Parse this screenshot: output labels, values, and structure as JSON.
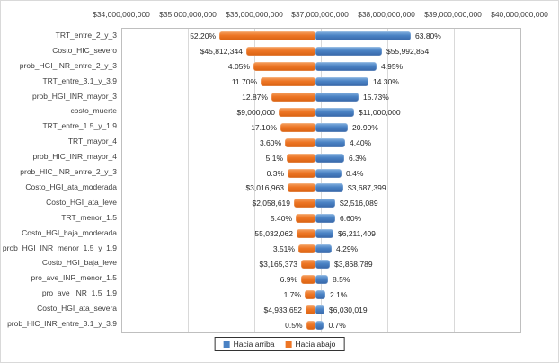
{
  "chart_data": {
    "type": "bar",
    "subtype": "tornado",
    "orientation": "horizontal",
    "title": "",
    "x_axis": {
      "position": "top",
      "tick_labels": [
        "$34,000,000,000",
        "$35,000,000,000",
        "$36,000,000,000",
        "$37,000,000,000",
        "$38,000,000,000",
        "$39,000,000,000",
        "$40,000,000,000"
      ],
      "range_billions": [
        34,
        40
      ],
      "gridlines_at_billions": [
        35,
        36,
        37,
        38,
        39
      ],
      "grid": true
    },
    "base_value_billions": 36.906,
    "rows": [
      {
        "label": "TRT_entre_2_y_3",
        "down_label": "52.20%",
        "up_label": "63.80%",
        "down_value_b": 35.463,
        "up_value_b": 38.348
      },
      {
        "label": "Costo_HIC_severo",
        "down_label": "$45,812,344",
        "up_label": "$55,992,854",
        "down_value_b": 35.869,
        "up_value_b": 37.914
      },
      {
        "label": "prob_HGI_INR_entre_2_y_3",
        "down_label": "4.05%",
        "up_label": "4.95%",
        "down_value_b": 35.977,
        "up_value_b": 37.833
      },
      {
        "label": "TRT_entre_3.1_y_3.9",
        "down_label": "11.70%",
        "up_label": "14.30%",
        "down_value_b": 36.086,
        "up_value_b": 37.711
      },
      {
        "label": "prob_HGI_INR_mayor_3",
        "down_label": "12.87%",
        "up_label": "15.73%",
        "down_value_b": 36.248,
        "up_value_b": 37.562
      },
      {
        "label": "costo_muerte",
        "down_label": "$9,000,000",
        "up_label": "$11,000,000",
        "down_value_b": 36.357,
        "up_value_b": 37.494
      },
      {
        "label": "TRT_entre_1.5_y_1.9",
        "down_label": "17.10%",
        "up_label": "20.90%",
        "down_value_b": 36.384,
        "up_value_b": 37.4
      },
      {
        "label": "TRT_mayor_4",
        "down_label": "3.60%",
        "up_label": "4.40%",
        "down_value_b": 36.452,
        "up_value_b": 37.359
      },
      {
        "label": "prob_HIC_INR_mayor_4",
        "down_label": "5.1%",
        "up_label": "6.3%",
        "down_value_b": 36.479,
        "up_value_b": 37.346
      },
      {
        "label": "prob_HIC_INR_entre_2_y_3",
        "down_label": "0.3%",
        "up_label": "0.4%",
        "down_value_b": 36.492,
        "up_value_b": 37.305
      },
      {
        "label": "Costo_HGI_ata_moderada",
        "down_label": "$3,016,963",
        "up_label": "$3,687,399",
        "down_value_b": 36.492,
        "up_value_b": 37.332
      },
      {
        "label": "Costo_HGI_ata_leve",
        "down_label": "$2,058,619",
        "up_label": "$2,516,089",
        "down_value_b": 36.587,
        "up_value_b": 37.21
      },
      {
        "label": "TRT_menor_1.5",
        "down_label": "5.40%",
        "up_label": "6.60%",
        "down_value_b": 36.614,
        "up_value_b": 37.21
      },
      {
        "label": "Costo_HGI_baja_moderada",
        "down_label": "55,032,062",
        "up_label": "$6,211,409",
        "down_value_b": 36.627,
        "up_value_b": 37.183
      },
      {
        "label": "prob_HGI_INR_menor_1.5_y_1.9",
        "down_label": "3.51%",
        "up_label": "4.29%",
        "down_value_b": 36.654,
        "up_value_b": 37.156
      },
      {
        "label": "Costo_HGI_baja_leve",
        "down_label": "$3,165,373",
        "up_label": "$3,868,789",
        "down_value_b": 36.695,
        "up_value_b": 37.129
      },
      {
        "label": "pro_ave_INR_menor_1.5",
        "down_label": "6.9%",
        "up_label": "8.5%",
        "down_value_b": 36.695,
        "up_value_b": 37.102
      },
      {
        "label": "pro_ave_INR_1.5_1.9",
        "down_label": "1.7%",
        "up_label": "2.1%",
        "down_value_b": 36.749,
        "up_value_b": 37.061
      },
      {
        "label": "Costo_HGI_ata_severa",
        "down_label": "$4,933,652",
        "up_label": "$6,030,019",
        "down_value_b": 36.763,
        "up_value_b": 37.048
      },
      {
        "label": "prob_HIC_INR_entre_3.1_y_3.9",
        "down_label": "0.5%",
        "up_label": "0.7%",
        "down_value_b": 36.77,
        "up_value_b": 37.04
      }
    ],
    "legend": {
      "position": "bottom",
      "entries": [
        {
          "label": "Hacia arriba",
          "color": "#4a82c4"
        },
        {
          "label": "Hacia abajo",
          "color": "#ed7524"
        }
      ]
    }
  },
  "colors": {
    "up_base": "#4a82c4",
    "up_light": "#85b1e0",
    "up_dark": "#3767a8",
    "down_base": "#ed7524",
    "down_light": "#f5a263",
    "down_dark": "#d96212",
    "grid": "#d9d9d9",
    "plot_border": "#bfbfbf",
    "text": "#404040"
  }
}
